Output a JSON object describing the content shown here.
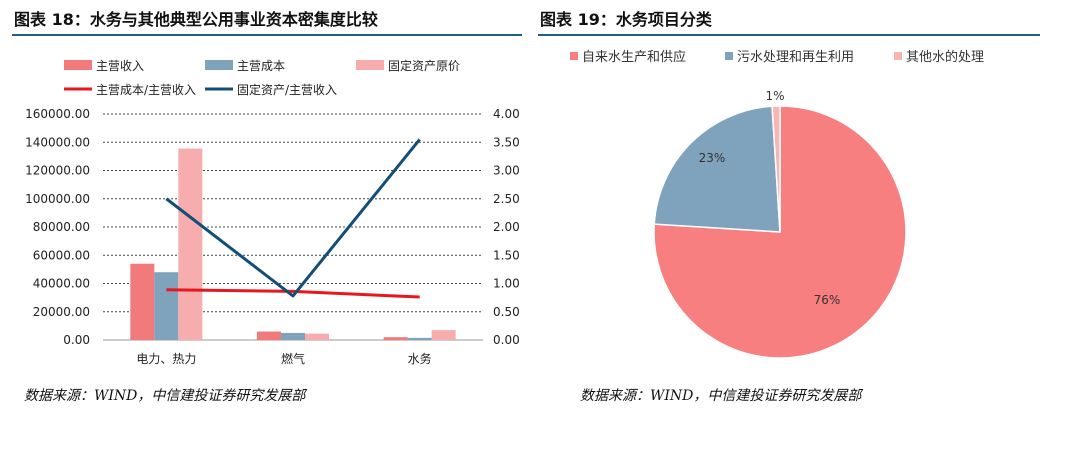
{
  "left": {
    "title": "图表 18：水务与其他典型公用事业资本密集度比较",
    "source": "数据来源：WIND，中信建投证券研究发展部",
    "colors": {
      "revenue": "#f17b7b",
      "cost": "#7fa3bd",
      "assets": "#f7adad",
      "cost_ratio": "#e8161f",
      "asset_ratio": "#124e78"
    }
  },
  "right": {
    "title": "图表 19：水务项目分类",
    "source": "数据来源：WIND，中信建投证券研究发展部",
    "colors": {
      "tap": "#f77f80",
      "sewage": "#7fa3bd",
      "other": "#f9b4b4"
    }
  },
  "chart_data": [
    {
      "type": "bar",
      "categories": [
        "电力、热力",
        "燃气",
        "水务"
      ],
      "series": [
        {
          "name": "主营收入",
          "axis": "left",
          "values": [
            54000,
            6000,
            2000
          ]
        },
        {
          "name": "主营成本",
          "axis": "left",
          "values": [
            48000,
            5000,
            1500
          ]
        },
        {
          "name": "固定资产原价",
          "axis": "left",
          "values": [
            135500,
            4500,
            7000
          ]
        },
        {
          "name": "主营成本/主营收入",
          "axis": "right",
          "kind": "line",
          "values": [
            0.89,
            0.86,
            0.76
          ]
        },
        {
          "name": "固定资产/主营收入",
          "axis": "right",
          "kind": "line",
          "values": [
            2.5,
            0.78,
            3.55
          ]
        }
      ],
      "ylim": [
        0,
        160000
      ],
      "y2lim": [
        0,
        4
      ],
      "yticks": [
        "0.00",
        "20000.00",
        "40000.00",
        "60000.00",
        "80000.00",
        "100000.00",
        "120000.00",
        "140000.00",
        "160000.00"
      ],
      "y2ticks": [
        "0.00",
        "0.50",
        "1.00",
        "1.50",
        "2.00",
        "2.50",
        "3.00",
        "3.50",
        "4.00"
      ],
      "grid": true,
      "legend": "top"
    },
    {
      "type": "pie",
      "labels": [
        "自来水生产和供应",
        "污水处理和再生利用",
        "其他水的处理"
      ],
      "values": [
        76,
        23,
        1
      ],
      "data_labels": [
        "76%",
        "23%",
        "1%"
      ],
      "legend": "top"
    }
  ]
}
